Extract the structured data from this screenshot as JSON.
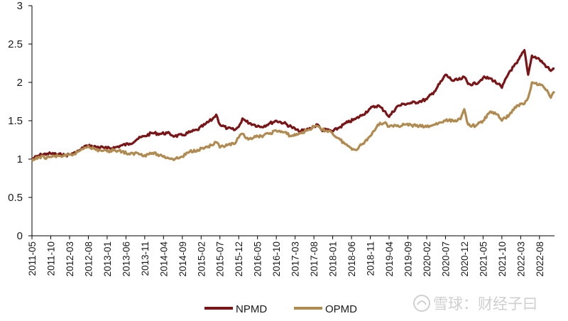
{
  "chart_data": {
    "type": "line",
    "title": "",
    "xlabel": "",
    "ylabel": "",
    "ylim": [
      0,
      3
    ],
    "y_ticks": [
      "0",
      "0.5",
      "1",
      "1.5",
      "2",
      "2.5",
      "3"
    ],
    "x_ticks": [
      "2011-05",
      "2011-10",
      "2012-03",
      "2012-08",
      "2013-01",
      "2013-06",
      "2013-11",
      "2014-04",
      "2014-09",
      "2015-02",
      "2015-07",
      "2015-12",
      "2016-05",
      "2016-10",
      "2017-03",
      "2017-08",
      "2018-01",
      "2018-06",
      "2018-11",
      "2019-04",
      "2019-09",
      "2020-02",
      "2020-07",
      "2020-12",
      "2021-05",
      "2021-10",
      "2022-03",
      "2022-08"
    ],
    "x_range": [
      "2011-05",
      "2022-12"
    ],
    "grid": false,
    "legend_position": "bottom",
    "series": [
      {
        "name": "NPMD",
        "color": "#7b1416",
        "points": [
          [
            "2011-05",
            1.0
          ],
          [
            "2011-07",
            1.05
          ],
          [
            "2011-09",
            1.07
          ],
          [
            "2011-10",
            1.07
          ],
          [
            "2011-12",
            1.06
          ],
          [
            "2012-02",
            1.05
          ],
          [
            "2012-04",
            1.07
          ],
          [
            "2012-06",
            1.12
          ],
          [
            "2012-07",
            1.17
          ],
          [
            "2012-08",
            1.17
          ],
          [
            "2012-10",
            1.16
          ],
          [
            "2012-12",
            1.15
          ],
          [
            "2013-01",
            1.14
          ],
          [
            "2013-03",
            1.15
          ],
          [
            "2013-05",
            1.18
          ],
          [
            "2013-07",
            1.2
          ],
          [
            "2013-09",
            1.26
          ],
          [
            "2013-11",
            1.3
          ],
          [
            "2014-01",
            1.34
          ],
          [
            "2014-03",
            1.33
          ],
          [
            "2014-05",
            1.34
          ],
          [
            "2014-07",
            1.3
          ],
          [
            "2014-09",
            1.31
          ],
          [
            "2014-11",
            1.35
          ],
          [
            "2015-01",
            1.38
          ],
          [
            "2015-03",
            1.45
          ],
          [
            "2015-05",
            1.52
          ],
          [
            "2015-06",
            1.58
          ],
          [
            "2015-07",
            1.45
          ],
          [
            "2015-09",
            1.4
          ],
          [
            "2015-11",
            1.38
          ],
          [
            "2015-12",
            1.42
          ],
          [
            "2016-01",
            1.53
          ],
          [
            "2016-02",
            1.49
          ],
          [
            "2016-04",
            1.45
          ],
          [
            "2016-06",
            1.42
          ],
          [
            "2016-08",
            1.46
          ],
          [
            "2016-10",
            1.5
          ],
          [
            "2016-12",
            1.47
          ],
          [
            "2017-02",
            1.42
          ],
          [
            "2017-04",
            1.36
          ],
          [
            "2017-06",
            1.38
          ],
          [
            "2017-08",
            1.42
          ],
          [
            "2017-09",
            1.45
          ],
          [
            "2017-10",
            1.38
          ],
          [
            "2017-12",
            1.38
          ],
          [
            "2018-01",
            1.36
          ],
          [
            "2018-03",
            1.42
          ],
          [
            "2018-05",
            1.48
          ],
          [
            "2018-07",
            1.52
          ],
          [
            "2018-09",
            1.58
          ],
          [
            "2018-11",
            1.66
          ],
          [
            "2019-01",
            1.7
          ],
          [
            "2019-03",
            1.62
          ],
          [
            "2019-04",
            1.55
          ],
          [
            "2019-06",
            1.68
          ],
          [
            "2019-08",
            1.72
          ],
          [
            "2019-10",
            1.73
          ],
          [
            "2019-12",
            1.75
          ],
          [
            "2020-02",
            1.78
          ],
          [
            "2020-04",
            1.88
          ],
          [
            "2020-06",
            2.02
          ],
          [
            "2020-07",
            2.1
          ],
          [
            "2020-09",
            2.02
          ],
          [
            "2020-11",
            2.04
          ],
          [
            "2020-12",
            2.07
          ],
          [
            "2021-01",
            1.98
          ],
          [
            "2021-03",
            1.98
          ],
          [
            "2021-05",
            2.06
          ],
          [
            "2021-07",
            2.05
          ],
          [
            "2021-09",
            1.98
          ],
          [
            "2021-10",
            1.93
          ],
          [
            "2021-12",
            2.14
          ],
          [
            "2022-02",
            2.25
          ],
          [
            "2022-04",
            2.42
          ],
          [
            "2022-05",
            2.1
          ],
          [
            "2022-06",
            2.35
          ],
          [
            "2022-08",
            2.3
          ],
          [
            "2022-10",
            2.2
          ],
          [
            "2022-11",
            2.15
          ],
          [
            "2022-12",
            2.18
          ]
        ]
      },
      {
        "name": "OPMD",
        "color": "#b08a4e",
        "points": [
          [
            "2011-05",
            0.97
          ],
          [
            "2011-07",
            1.03
          ],
          [
            "2011-09",
            1.02
          ],
          [
            "2011-10",
            1.03
          ],
          [
            "2011-12",
            1.04
          ],
          [
            "2012-02",
            1.04
          ],
          [
            "2012-04",
            1.06
          ],
          [
            "2012-06",
            1.12
          ],
          [
            "2012-07",
            1.15
          ],
          [
            "2012-08",
            1.17
          ],
          [
            "2012-10",
            1.12
          ],
          [
            "2012-12",
            1.11
          ],
          [
            "2013-01",
            1.1
          ],
          [
            "2013-03",
            1.12
          ],
          [
            "2013-05",
            1.1
          ],
          [
            "2013-07",
            1.06
          ],
          [
            "2013-09",
            1.08
          ],
          [
            "2013-11",
            1.05
          ],
          [
            "2014-01",
            1.08
          ],
          [
            "2014-03",
            1.05
          ],
          [
            "2014-05",
            1.02
          ],
          [
            "2014-07",
            1.0
          ],
          [
            "2014-09",
            1.03
          ],
          [
            "2014-11",
            1.1
          ],
          [
            "2015-01",
            1.12
          ],
          [
            "2015-03",
            1.15
          ],
          [
            "2015-05",
            1.18
          ],
          [
            "2015-06",
            1.22
          ],
          [
            "2015-07",
            1.15
          ],
          [
            "2015-09",
            1.18
          ],
          [
            "2015-11",
            1.2
          ],
          [
            "2015-12",
            1.28
          ],
          [
            "2016-01",
            1.33
          ],
          [
            "2016-02",
            1.27
          ],
          [
            "2016-04",
            1.28
          ],
          [
            "2016-06",
            1.3
          ],
          [
            "2016-08",
            1.33
          ],
          [
            "2016-10",
            1.37
          ],
          [
            "2016-12",
            1.35
          ],
          [
            "2017-02",
            1.3
          ],
          [
            "2017-04",
            1.33
          ],
          [
            "2017-06",
            1.37
          ],
          [
            "2017-08",
            1.42
          ],
          [
            "2017-09",
            1.43
          ],
          [
            "2017-10",
            1.38
          ],
          [
            "2017-12",
            1.37
          ],
          [
            "2018-01",
            1.33
          ],
          [
            "2018-03",
            1.25
          ],
          [
            "2018-05",
            1.17
          ],
          [
            "2018-07",
            1.12
          ],
          [
            "2018-09",
            1.2
          ],
          [
            "2018-11",
            1.3
          ],
          [
            "2019-01",
            1.45
          ],
          [
            "2019-03",
            1.48
          ],
          [
            "2019-04",
            1.42
          ],
          [
            "2019-06",
            1.43
          ],
          [
            "2019-08",
            1.45
          ],
          [
            "2019-10",
            1.44
          ],
          [
            "2019-12",
            1.43
          ],
          [
            "2020-02",
            1.42
          ],
          [
            "2020-04",
            1.45
          ],
          [
            "2020-06",
            1.48
          ],
          [
            "2020-07",
            1.5
          ],
          [
            "2020-09",
            1.5
          ],
          [
            "2020-11",
            1.52
          ],
          [
            "2020-12",
            1.65
          ],
          [
            "2021-01",
            1.45
          ],
          [
            "2021-03",
            1.43
          ],
          [
            "2021-05",
            1.5
          ],
          [
            "2021-07",
            1.62
          ],
          [
            "2021-09",
            1.58
          ],
          [
            "2021-10",
            1.5
          ],
          [
            "2021-12",
            1.58
          ],
          [
            "2022-02",
            1.7
          ],
          [
            "2022-04",
            1.72
          ],
          [
            "2022-05",
            1.8
          ],
          [
            "2022-06",
            2.0
          ],
          [
            "2022-08",
            1.98
          ],
          [
            "2022-10",
            1.9
          ],
          [
            "2022-11",
            1.8
          ],
          [
            "2022-12",
            1.88
          ]
        ]
      }
    ]
  },
  "watermark": {
    "text": "雪球：财经子曰",
    "icon": "snowball-logo-icon"
  }
}
